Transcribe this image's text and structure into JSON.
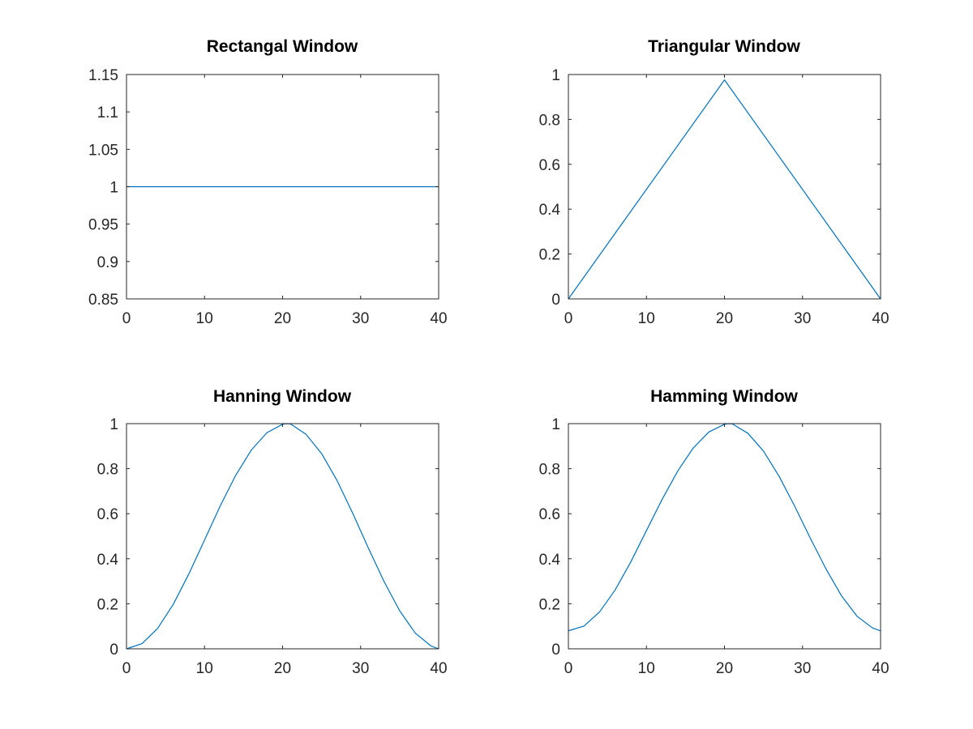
{
  "figure": {
    "line_color": "#0072BD",
    "axes_color": "#262626"
  },
  "chart_data": [
    {
      "type": "line",
      "title": "Rectangal Window",
      "xlabel": "",
      "ylabel": "",
      "xlim": [
        0,
        40
      ],
      "ylim": [
        0.85,
        1.15
      ],
      "xticks": [
        0,
        10,
        20,
        30,
        40
      ],
      "xtick_labels": [
        "0",
        "10",
        "20",
        "30",
        "40"
      ],
      "yticks": [
        0.85,
        0.9,
        0.95,
        1,
        1.05,
        1.1,
        1.15
      ],
      "ytick_labels": [
        "0.85",
        "0.9",
        "0.95",
        "1",
        "1.05",
        "1.1",
        "1.15"
      ],
      "grid": false,
      "legend": "none",
      "series": [
        {
          "x": [
            0,
            40
          ],
          "y": [
            1,
            1
          ]
        }
      ]
    },
    {
      "type": "line",
      "title": "Triangular Window",
      "xlabel": "",
      "ylabel": "",
      "xlim": [
        0,
        40
      ],
      "ylim": [
        0,
        1
      ],
      "xticks": [
        0,
        10,
        20,
        30,
        40
      ],
      "xtick_labels": [
        "0",
        "10",
        "20",
        "30",
        "40"
      ],
      "yticks": [
        0,
        0.2,
        0.4,
        0.6,
        0.8,
        1
      ],
      "ytick_labels": [
        "0",
        "0.2",
        "0.4",
        "0.6",
        "0.8",
        "1"
      ],
      "grid": false,
      "legend": "none",
      "series": [
        {
          "x": [
            0,
            20,
            40
          ],
          "y": [
            0,
            0.976,
            0
          ]
        }
      ]
    },
    {
      "type": "line",
      "title": "Hanning Window",
      "xlabel": "",
      "ylabel": "",
      "xlim": [
        0,
        40
      ],
      "ylim": [
        0,
        1
      ],
      "xticks": [
        0,
        10,
        20,
        30,
        40
      ],
      "xtick_labels": [
        "0",
        "10",
        "20",
        "30",
        "40"
      ],
      "yticks": [
        0,
        0.2,
        0.4,
        0.6,
        0.8,
        1
      ],
      "ytick_labels": [
        "0",
        "0.2",
        "0.4",
        "0.6",
        "0.8",
        "1"
      ],
      "grid": false,
      "legend": "none",
      "series": [
        {
          "x": [
            0,
            2,
            4,
            6,
            8,
            10,
            12,
            14,
            16,
            18,
            20,
            20.5,
            21,
            23,
            25,
            27,
            29,
            31,
            33,
            35,
            37,
            39,
            40
          ],
          "y": [
            0.0,
            0.023,
            0.091,
            0.198,
            0.333,
            0.483,
            0.634,
            0.771,
            0.883,
            0.96,
            0.997,
            1.0,
            0.999,
            0.953,
            0.867,
            0.746,
            0.601,
            0.447,
            0.299,
            0.169,
            0.07,
            0.013,
            0.0
          ]
        }
      ]
    },
    {
      "type": "line",
      "title": "Hamming Window",
      "xlabel": "",
      "ylabel": "",
      "xlim": [
        0,
        40
      ],
      "ylim": [
        0,
        1
      ],
      "xticks": [
        0,
        10,
        20,
        30,
        40
      ],
      "xtick_labels": [
        "0",
        "10",
        "20",
        "30",
        "40"
      ],
      "yticks": [
        0,
        0.2,
        0.4,
        0.6,
        0.8,
        1
      ],
      "ytick_labels": [
        "0",
        "0.2",
        "0.4",
        "0.6",
        "0.8",
        "1"
      ],
      "grid": false,
      "legend": "none",
      "series": [
        {
          "x": [
            0,
            2,
            4,
            6,
            8,
            10,
            12,
            14,
            16,
            18,
            20,
            20.5,
            21,
            23,
            25,
            27,
            29,
            31,
            33,
            35,
            37,
            39,
            40
          ],
          "y": [
            0.08,
            0.101,
            0.164,
            0.262,
            0.386,
            0.525,
            0.663,
            0.789,
            0.892,
            0.963,
            0.997,
            1.0,
            0.999,
            0.957,
            0.878,
            0.766,
            0.633,
            0.491,
            0.355,
            0.235,
            0.144,
            0.092,
            0.08
          ]
        }
      ]
    }
  ]
}
